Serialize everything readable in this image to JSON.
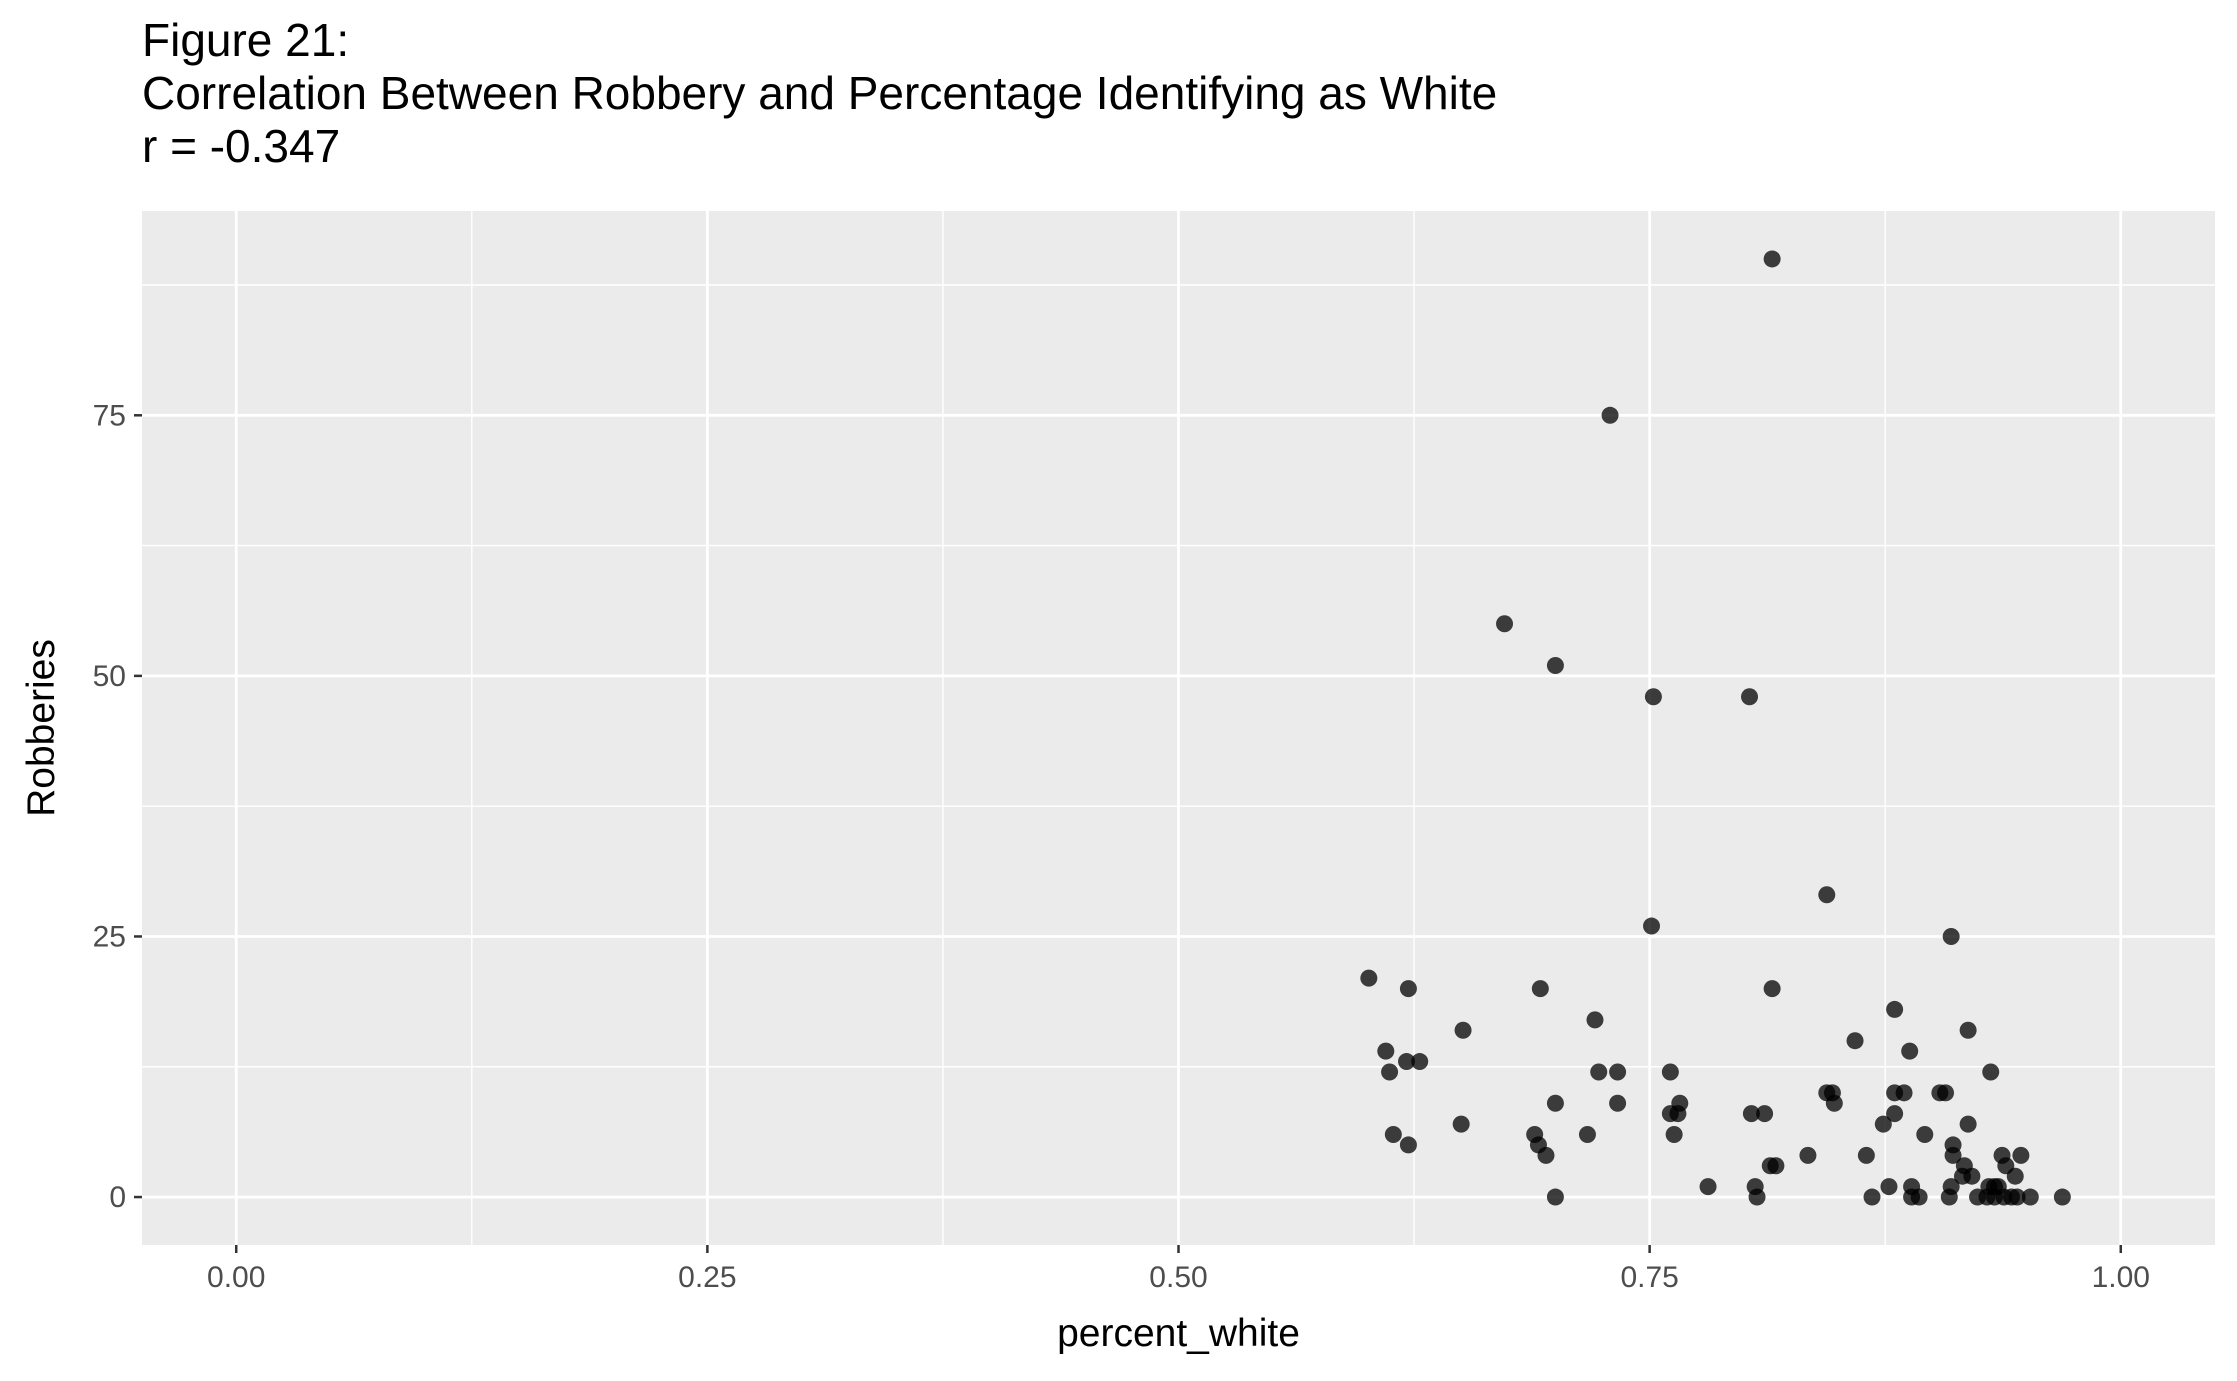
{
  "chart_data": {
    "type": "scatter",
    "title": "Figure 21:",
    "subtitle": "Correlation Between Robbery and Percentage Identifying as White",
    "caption_r": "r = -0.347",
    "xlabel": "percent_white",
    "ylabel": "Robberies",
    "xlim": [
      -0.05,
      1.05
    ],
    "ylim": [
      -4.6,
      94.6
    ],
    "x_ticks": [
      0.0,
      0.25,
      0.5,
      0.75,
      1.0
    ],
    "x_tick_labels": [
      "0.00",
      "0.25",
      "0.50",
      "0.75",
      "1.00"
    ],
    "y_ticks": [
      0,
      25,
      50,
      75
    ],
    "y_tick_labels": [
      "0",
      "25",
      "50",
      "75"
    ],
    "grid": true,
    "point_color": "#000000",
    "point_alpha": 0.75,
    "panel_background": "#ebebeb",
    "grid_color": "#ffffff",
    "x": [
      0.815,
      0.729,
      0.673,
      0.7,
      0.752,
      0.803,
      0.844,
      0.751,
      0.91,
      0.601,
      0.622,
      0.692,
      0.815,
      0.919,
      0.651,
      0.88,
      0.721,
      0.859,
      0.61,
      0.888,
      0.621,
      0.628,
      0.612,
      0.723,
      0.733,
      0.761,
      0.844,
      0.904,
      0.931,
      0.847,
      0.88,
      0.885,
      0.907,
      0.7,
      0.733,
      0.766,
      0.848,
      0.761,
      0.765,
      0.804,
      0.811,
      0.88,
      0.65,
      0.874,
      0.919,
      0.689,
      0.717,
      0.763,
      0.614,
      0.896,
      0.691,
      0.622,
      0.911,
      0.917,
      0.695,
      0.834,
      0.865,
      0.911,
      0.937,
      0.947,
      0.814,
      0.817,
      0.921,
      0.939,
      0.916,
      0.933,
      0.944,
      0.781,
      0.806,
      0.877,
      0.889,
      0.91,
      0.93,
      0.935,
      0.7,
      0.807,
      0.868,
      0.889,
      0.893,
      0.909,
      0.924,
      0.929,
      0.933,
      0.938,
      0.942,
      0.945,
      0.952,
      0.969
    ],
    "y": [
      90,
      75,
      55,
      51,
      48,
      48,
      29,
      26,
      25,
      21,
      20,
      20,
      20,
      16,
      16,
      18,
      17,
      15,
      14,
      14,
      13,
      13,
      12,
      12,
      12,
      12,
      10,
      10,
      12,
      10,
      10,
      10,
      10,
      9,
      9,
      9,
      9,
      8,
      8,
      8,
      8,
      8,
      7,
      7,
      7,
      6,
      6,
      6,
      6,
      6,
      5,
      5,
      5,
      3,
      4,
      4,
      4,
      4,
      4,
      4,
      3,
      3,
      2,
      3,
      2,
      1,
      2,
      1,
      1,
      1,
      1,
      1,
      1,
      1,
      0,
      0,
      0,
      0,
      0,
      0,
      0,
      0,
      0,
      0,
      0,
      0,
      0,
      0
    ]
  }
}
